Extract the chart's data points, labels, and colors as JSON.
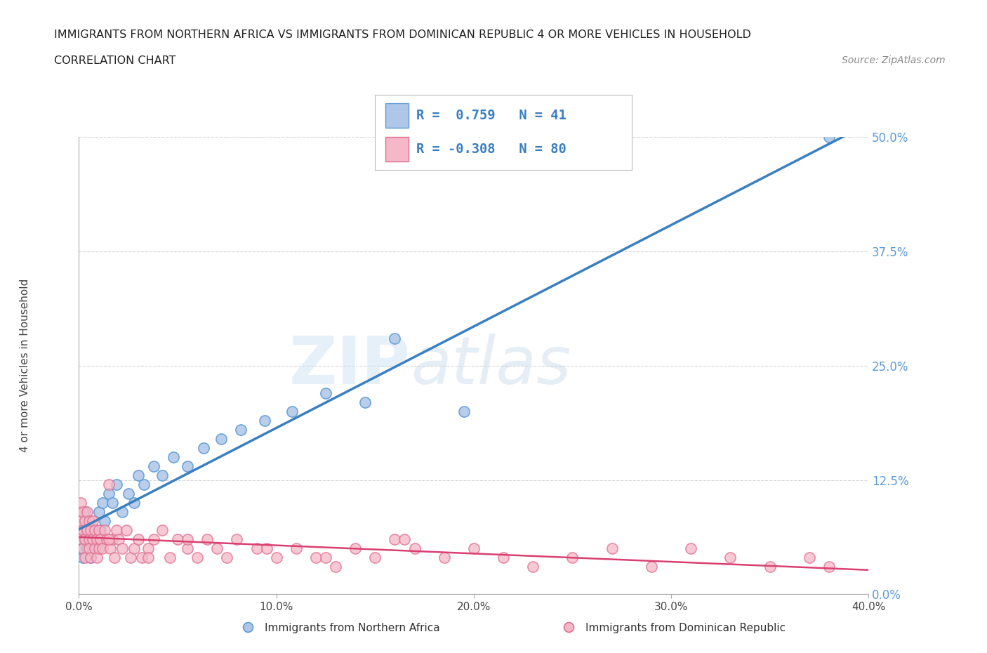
{
  "title_line1": "IMMIGRANTS FROM NORTHERN AFRICA VS IMMIGRANTS FROM DOMINICAN REPUBLIC 4 OR MORE VEHICLES IN HOUSEHOLD",
  "title_line2": "CORRELATION CHART",
  "source_text": "Source: ZipAtlas.com",
  "watermark_part1": "ZIP",
  "watermark_part2": "atlas",
  "series1_name": "Immigrants from Northern Africa",
  "series1_color": "#aec6e8",
  "series1_edge_color": "#5b9bd5",
  "series1_line_color": "#3a7fc1",
  "series1_R": 0.759,
  "series1_N": 41,
  "series2_name": "Immigrants from Dominican Republic",
  "series2_color": "#f5b8c8",
  "series2_edge_color": "#e07090",
  "series2_line_color": "#d94070",
  "series2_R": -0.308,
  "series2_N": 80,
  "xlim": [
    0.0,
    0.4
  ],
  "ylim": [
    0.0,
    0.5
  ],
  "xticks": [
    0.0,
    0.1,
    0.2,
    0.3,
    0.4
  ],
  "xtick_labels": [
    "0.0%",
    "10.0%",
    "20.0%",
    "30.0%",
    "40.0%"
  ],
  "yticks": [
    0.0,
    0.125,
    0.25,
    0.375,
    0.5
  ],
  "ytick_labels": [
    "0.0%",
    "12.5%",
    "25.0%",
    "37.5%",
    "50.0%"
  ],
  "ylabel": "4 or more Vehicles in Household",
  "grid_color": "#cccccc",
  "bg_color": "#ffffff",
  "title_color": "#222222",
  "tick_color": "#5b9bd5",
  "axis_label_color": "#444444",
  "legend_R1_text": "R =  0.759   N = 41",
  "legend_R2_text": "R = -0.308   N = 80",
  "legend_color": "#3a7fc1"
}
